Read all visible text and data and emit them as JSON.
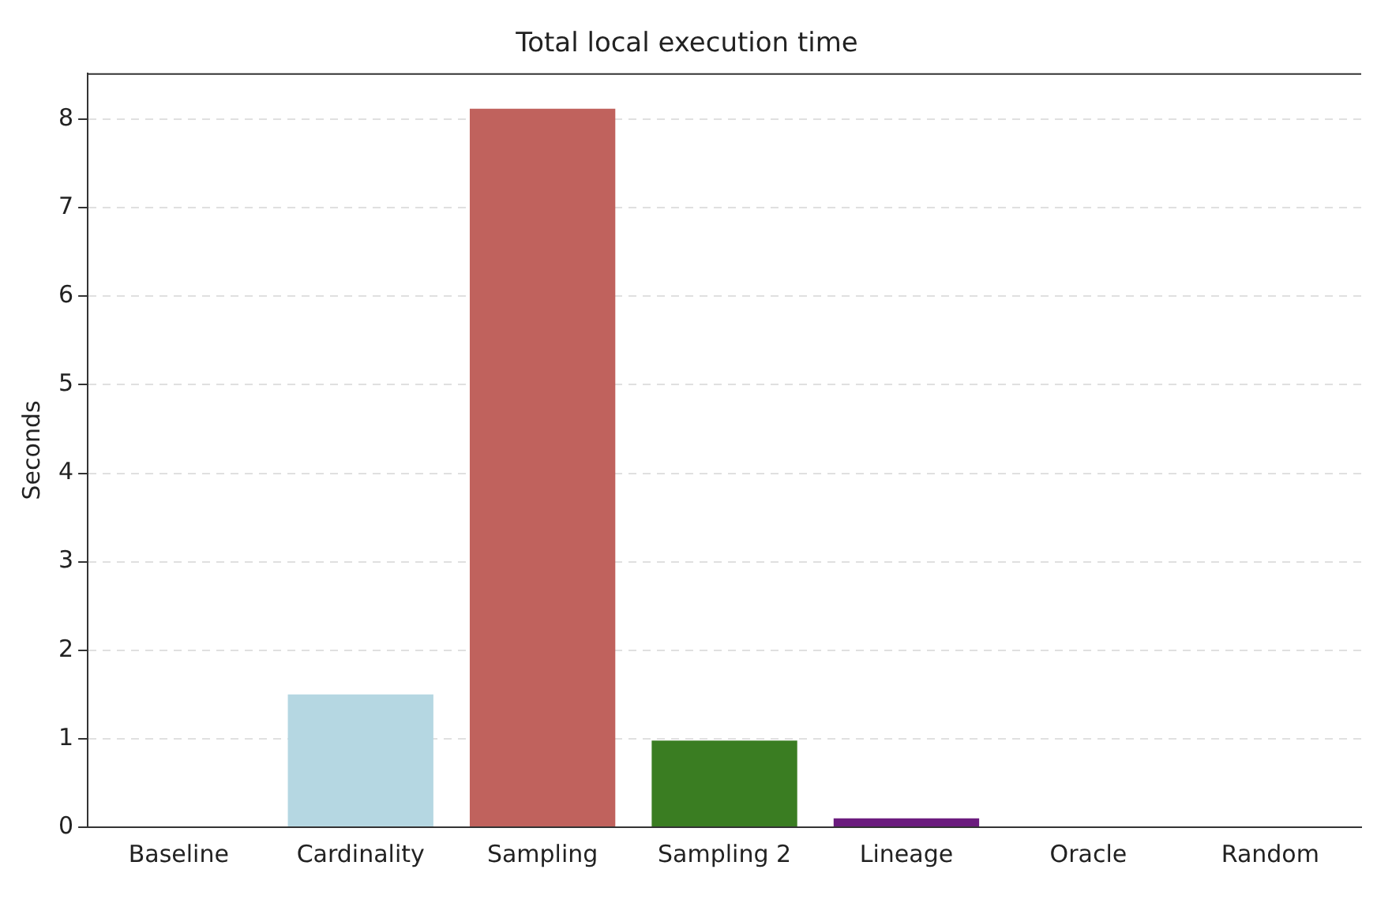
{
  "chart_data": {
    "type": "bar",
    "title": "Total local execution time",
    "ylabel": "Seconds",
    "categories": [
      "Baseline",
      "Cardinality",
      "Sampling",
      "Sampling 2",
      "Lineage",
      "Oracle",
      "Random"
    ],
    "values": [
      0,
      1.5,
      8.12,
      0.98,
      0.1,
      0,
      0
    ],
    "colors": [
      "#4472c4",
      "#b5d7e2",
      "#c0625d",
      "#3a7d22",
      "#6b1c7e",
      "#e08a2c",
      "#808080"
    ],
    "ylim": [
      0,
      8.52
    ],
    "yticks": [
      0,
      1,
      2,
      3,
      4,
      5,
      6,
      7,
      8
    ],
    "grid": "y"
  }
}
